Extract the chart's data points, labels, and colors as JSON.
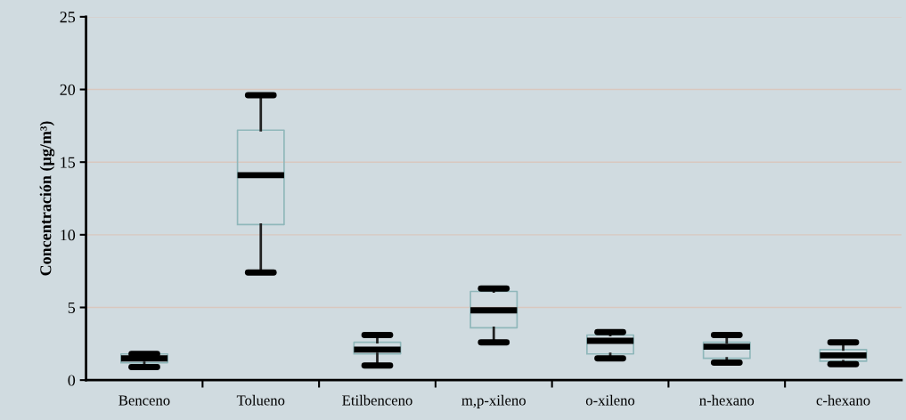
{
  "chart_data": {
    "type": "box",
    "ylabel": "Concentración (µg/m³)",
    "categories": [
      "Benceno",
      "Tolueno",
      "Etilbenceno",
      "m,p-xileno",
      "o-xileno",
      "n-hexano",
      "c-hexano"
    ],
    "boxes": [
      {
        "low": 0.9,
        "q1": 1.2,
        "median": 1.5,
        "q3": 1.8,
        "high": 1.8
      },
      {
        "low": 7.4,
        "q1": 10.7,
        "median": 14.1,
        "q3": 17.2,
        "high": 19.6
      },
      {
        "low": 1.0,
        "q1": 1.8,
        "median": 2.1,
        "q3": 2.6,
        "high": 3.1
      },
      {
        "low": 2.6,
        "q1": 3.6,
        "median": 4.8,
        "q3": 6.1,
        "high": 6.3
      },
      {
        "low": 1.5,
        "q1": 1.8,
        "median": 2.7,
        "q3": 3.1,
        "high": 3.3
      },
      {
        "low": 1.2,
        "q1": 1.5,
        "median": 2.3,
        "q3": 2.6,
        "high": 3.1
      },
      {
        "low": 1.1,
        "q1": 1.3,
        "median": 1.7,
        "q3": 2.1,
        "high": 2.6
      }
    ],
    "color": "#8fb7ba",
    "ylim": [
      0,
      25
    ],
    "yticks": [
      0,
      5,
      10,
      15,
      20,
      25
    ],
    "grid": "y"
  }
}
